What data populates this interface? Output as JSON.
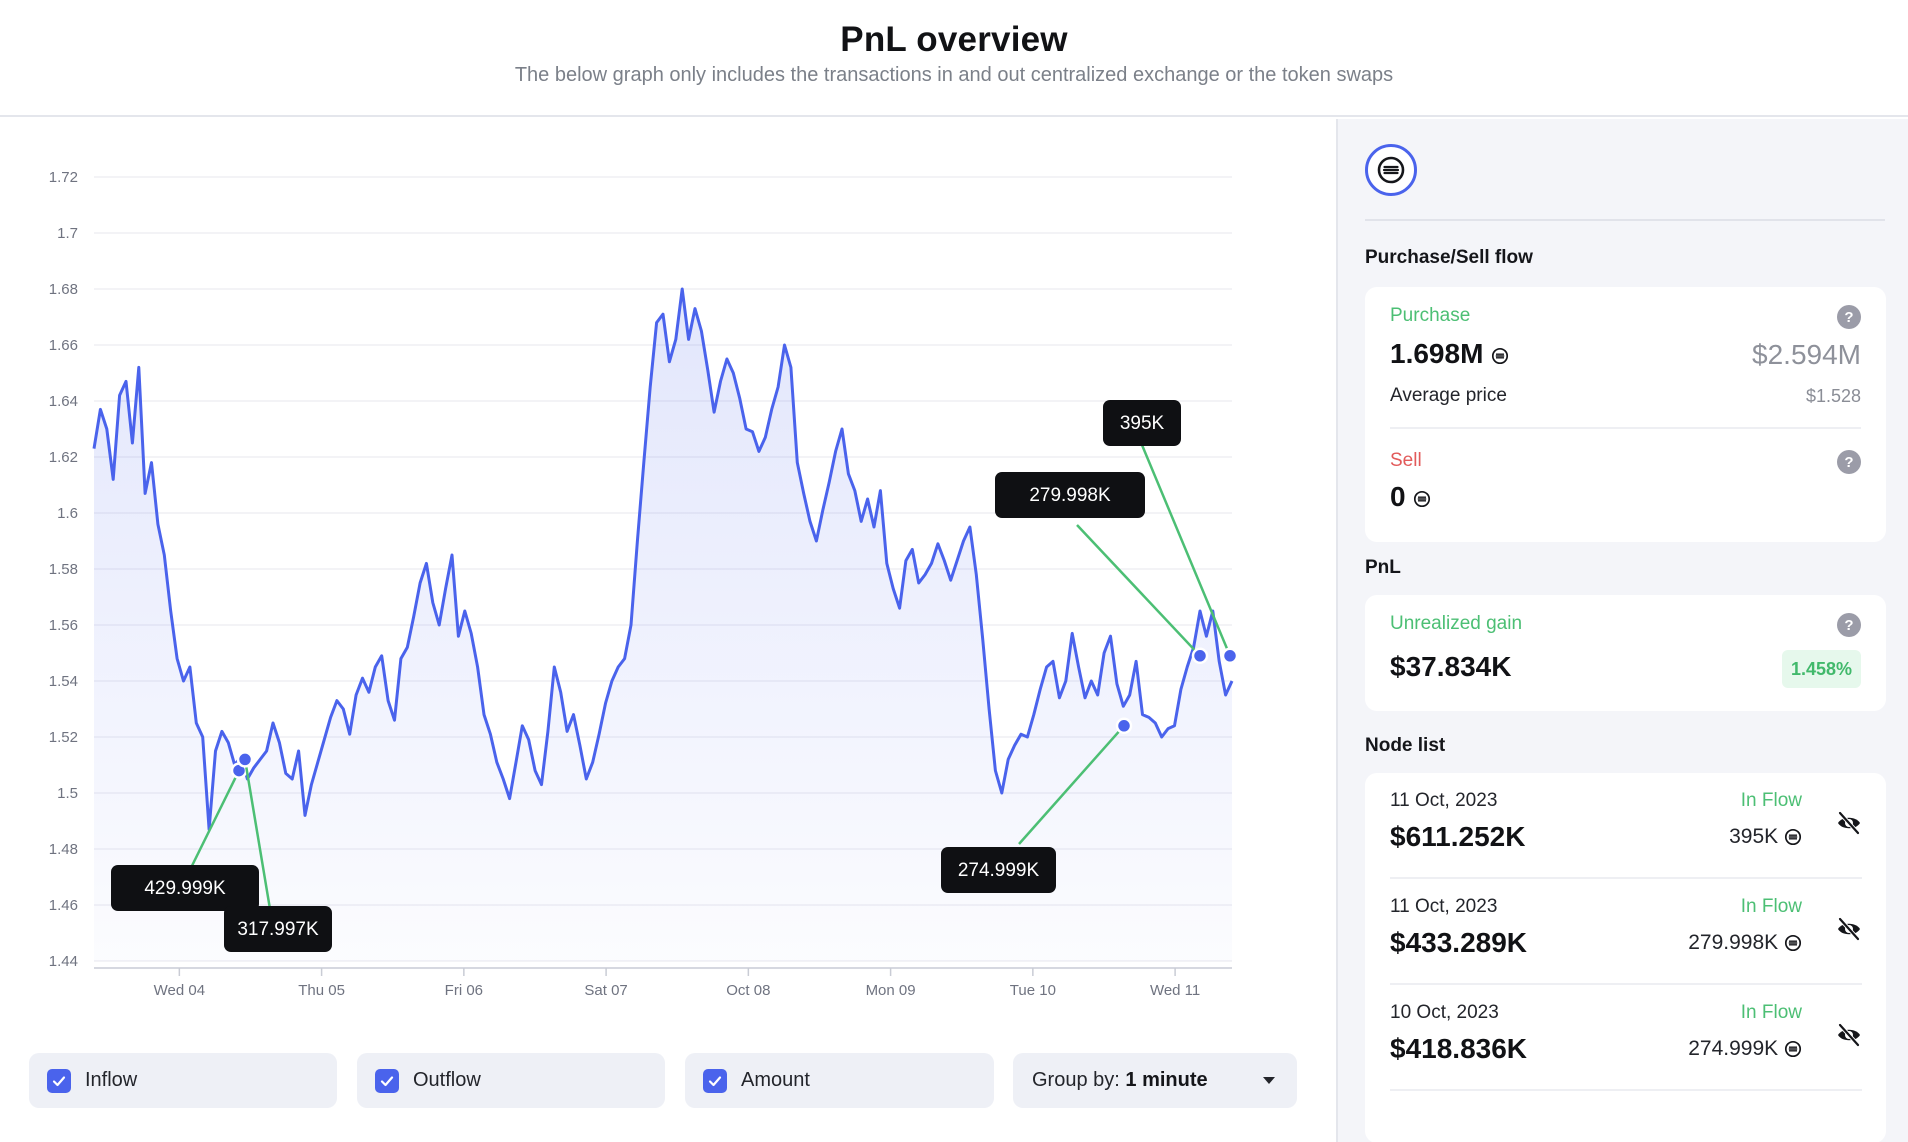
{
  "header": {
    "title": "PnL overview",
    "subtitle": "The below graph only includes the transactions in and out centralized exchange or the token swaps"
  },
  "chart_data": {
    "type": "line",
    "series": [
      {
        "values": [
          1.623,
          1.637,
          1.63,
          1.612,
          1.642,
          1.647,
          1.625,
          1.652,
          1.607,
          1.618,
          1.596,
          1.585,
          1.565,
          1.548,
          1.54,
          1.545,
          1.525,
          1.52,
          1.487,
          1.515,
          1.522,
          1.518,
          1.51,
          1.513,
          1.505,
          1.509,
          1.512,
          1.515,
          1.525,
          1.518,
          1.507,
          1.505,
          1.515,
          1.492,
          1.503,
          1.511,
          1.519,
          1.527,
          1.533,
          1.53,
          1.521,
          1.535,
          1.541,
          1.536,
          1.545,
          1.549,
          1.533,
          1.526,
          1.548,
          1.552,
          1.563,
          1.575,
          1.582,
          1.568,
          1.56,
          1.573,
          1.585,
          1.556,
          1.565,
          1.557,
          1.545,
          1.528,
          1.521,
          1.511,
          1.505,
          1.498,
          1.511,
          1.524,
          1.519,
          1.508,
          1.503,
          1.522,
          1.545,
          1.536,
          1.522,
          1.528,
          1.517,
          1.505,
          1.511,
          1.521,
          1.532,
          1.54,
          1.545,
          1.548,
          1.56,
          1.59,
          1.618,
          1.645,
          1.668,
          1.671,
          1.654,
          1.662,
          1.68,
          1.662,
          1.673,
          1.665,
          1.651,
          1.636,
          1.647,
          1.655,
          1.65,
          1.641,
          1.63,
          1.629,
          1.622,
          1.627,
          1.637,
          1.645,
          1.66,
          1.652,
          1.618,
          1.607,
          1.597,
          1.59,
          1.601,
          1.611,
          1.622,
          1.63,
          1.614,
          1.608,
          1.597,
          1.605,
          1.595,
          1.608,
          1.582,
          1.573,
          1.566,
          1.583,
          1.587,
          1.575,
          1.578,
          1.582,
          1.589,
          1.583,
          1.576,
          1.583,
          1.59,
          1.595,
          1.578,
          1.555,
          1.53,
          1.508,
          1.5,
          1.512,
          1.517,
          1.521,
          1.52,
          1.528,
          1.537,
          1.545,
          1.547,
          1.534,
          1.54,
          1.557,
          1.545,
          1.534,
          1.54,
          1.535,
          1.55,
          1.556,
          1.539,
          1.531,
          1.535,
          1.547,
          1.528,
          1.527,
          1.525,
          1.52,
          1.523,
          1.524,
          1.537,
          1.545,
          1.552,
          1.565,
          1.556,
          1.565,
          1.547,
          1.535,
          1.54
        ],
        "color": "#4a63ec"
      }
    ],
    "x_ticks": [
      "Wed 04",
      "Thu 05",
      "Fri 06",
      "Sat 07",
      "Oct 08",
      "Mon 09",
      "Tue 10",
      "Wed 11"
    ],
    "y_ticks": [
      "1.44",
      "1.46",
      "1.48",
      "1.5",
      "1.52",
      "1.54",
      "1.56",
      "1.58",
      "1.6",
      "1.62",
      "1.64",
      "1.66",
      "1.68",
      "1.7",
      "1.72"
    ],
    "ylim": [
      1.44,
      1.72
    ],
    "annotations": [
      {
        "label": "429.999K",
        "value": 1.508
      },
      {
        "label": "317.997K",
        "value": 1.512
      },
      {
        "label": "274.999K",
        "value": 1.524
      },
      {
        "label": "279.998K",
        "value": 1.549
      },
      {
        "label": "395K",
        "value": 1.549
      }
    ]
  },
  "controls": {
    "inflow": "Inflow",
    "outflow": "Outflow",
    "amount": "Amount",
    "group_by_label": "Group by:",
    "group_by_value": "1 minute"
  },
  "side": {
    "purchase_sell_title": "Purchase/Sell flow",
    "purchase": {
      "label": "Purchase",
      "amount": "1.698M",
      "usd": "$2.594M",
      "avg_label": "Average price",
      "avg_value": "$1.528"
    },
    "sell": {
      "label": "Sell",
      "amount": "0"
    },
    "pnl_title": "PnL",
    "pnl": {
      "label": "Unrealized gain",
      "value": "$37.834K",
      "percent": "1.458%"
    },
    "node_list_title": "Node list",
    "nodes": [
      {
        "date": "11 Oct, 2023",
        "usd": "$611.252K",
        "flow": "In Flow",
        "amount": "395K"
      },
      {
        "date": "11 Oct, 2023",
        "usd": "$433.289K",
        "flow": "In Flow",
        "amount": "279.998K"
      },
      {
        "date": "10 Oct, 2023",
        "usd": "$418.836K",
        "flow": "In Flow",
        "amount": "274.999K"
      }
    ],
    "qmark": "?"
  },
  "colors": {
    "accent": "#4a63ec",
    "green": "#4cbf74",
    "red": "#e25a5a"
  }
}
